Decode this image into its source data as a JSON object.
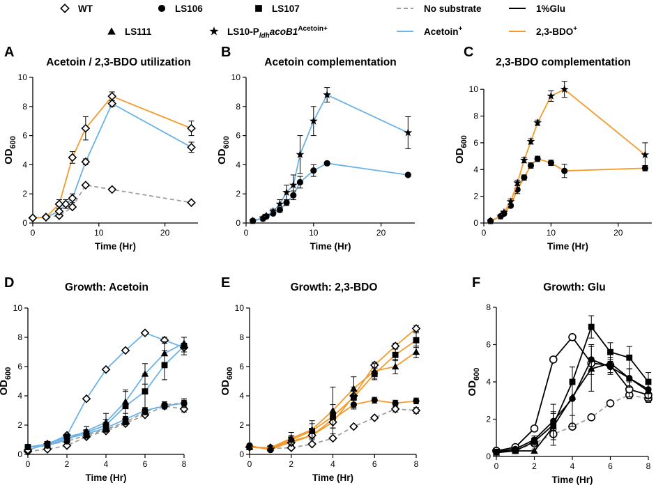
{
  "legend": {
    "items": [
      {
        "key": "wt",
        "label": "WT",
        "kind": "marker",
        "marker": "diamond"
      },
      {
        "key": "ls106",
        "label": "LS106",
        "kind": "marker",
        "marker": "circle"
      },
      {
        "key": "ls107",
        "label": "LS107",
        "kind": "marker",
        "marker": "square"
      },
      {
        "key": "nosub",
        "label": "No substrate",
        "kind": "line",
        "color": "#9e9e9e",
        "dash": true
      },
      {
        "key": "glu",
        "label": "1%Glu",
        "kind": "line",
        "color": "#000000",
        "dash": false
      },
      {
        "key": "ls111",
        "label": "LS111",
        "kind": "marker",
        "marker": "triangle"
      },
      {
        "key": "ls10",
        "label_main": "LS10-P",
        "label_sub": "ldh",
        "label_italic": "acoB1",
        "label_sup": "Acetoin+",
        "kind": "marker",
        "marker": "star"
      },
      {
        "key": "acetoin",
        "label": "Acetoin",
        "label_sup": "+",
        "kind": "line",
        "color": "#6cb2e6",
        "dash": false
      },
      {
        "key": "bdo",
        "label": "2,3-BDO",
        "label_sup": "+",
        "kind": "line",
        "color": "#f39a2b",
        "dash": false
      }
    ]
  },
  "colors": {
    "acetoin": "#6cb2e6",
    "bdo": "#f39a2b",
    "nosub": "#9e9e9e",
    "glu": "#000000"
  },
  "chart_data": [
    {
      "panel": "A",
      "title": "Acetoin / 2,3-BDO utilization",
      "type": "line",
      "xlabel": "Time (Hr)",
      "ylabel": "OD",
      "ylabel_sub": "600",
      "xlim": [
        0,
        25
      ],
      "ylim": [
        0,
        10
      ],
      "xticks": [
        0,
        10,
        20
      ],
      "yticks": [
        0,
        2,
        4,
        6,
        8,
        10
      ],
      "series": [
        {
          "name": "WT no substrate",
          "color": "#9e9e9e",
          "dash": true,
          "marker": "diamond",
          "x": [
            0,
            2,
            4,
            6,
            8,
            12,
            24
          ],
          "y": [
            0.35,
            0.4,
            0.5,
            1.1,
            2.6,
            2.3,
            1.4
          ],
          "err": [
            0.05,
            0.05,
            0.1,
            0.1,
            0.1,
            0.1,
            0.1
          ]
        },
        {
          "name": "WT Acetoin+",
          "color": "#6cb2e6",
          "dash": false,
          "marker": "diamond",
          "x": [
            0,
            2,
            4,
            5,
            6,
            8,
            12,
            24
          ],
          "y": [
            0.35,
            0.4,
            0.8,
            1.3,
            1.7,
            4.2,
            8.2,
            5.2
          ],
          "err": [
            0.05,
            0.05,
            0.2,
            0.3,
            0.3,
            0.2,
            0.2,
            0.35
          ]
        },
        {
          "name": "WT 2,3-BDO+",
          "color": "#f39a2b",
          "dash": false,
          "marker": "diamond",
          "x": [
            0,
            2,
            4,
            6,
            8,
            12,
            24
          ],
          "y": [
            0.35,
            0.4,
            1.3,
            4.5,
            6.5,
            8.7,
            6.5
          ],
          "err": [
            0.05,
            0.05,
            0.3,
            0.4,
            0.8,
            0.3,
            0.5
          ]
        }
      ]
    },
    {
      "panel": "B",
      "title": "Acetoin complementation",
      "type": "line",
      "xlabel": "Time (Hr)",
      "ylabel": "OD",
      "ylabel_sub": "600",
      "xlim": [
        0,
        25
      ],
      "ylim": [
        0,
        10
      ],
      "xticks": [
        0,
        10,
        20
      ],
      "yticks": [
        0,
        2,
        4,
        6,
        8,
        10
      ],
      "series": [
        {
          "name": "LS106 Acetoin+",
          "color": "#6cb2e6",
          "dash": false,
          "marker": "circle",
          "x": [
            1,
            2.5,
            3,
            4,
            5,
            6,
            7,
            8,
            10,
            12,
            24
          ],
          "y": [
            0.15,
            0.3,
            0.45,
            0.65,
            0.9,
            1.4,
            1.9,
            2.8,
            3.6,
            4.1,
            3.3
          ],
          "err": [
            0.05,
            0.05,
            0.1,
            0.1,
            0.15,
            0.2,
            0.3,
            0.4,
            0.4,
            0.1,
            0.1
          ]
        },
        {
          "name": "LS10-Pldh acoB1 Acetoin+",
          "color": "#6cb2e6",
          "dash": false,
          "marker": "star",
          "x": [
            1,
            2.5,
            3,
            4,
            5,
            6,
            7,
            8,
            10,
            12,
            24
          ],
          "y": [
            0.15,
            0.35,
            0.5,
            0.8,
            1.3,
            2.1,
            2.6,
            4.7,
            7.0,
            8.8,
            6.2
          ],
          "err": [
            0.05,
            0.05,
            0.1,
            0.15,
            0.3,
            0.5,
            0.7,
            1.3,
            1.0,
            0.5,
            1.1
          ]
        }
      ]
    },
    {
      "panel": "C",
      "title": "2,3-BDO complementation",
      "type": "line",
      "xlabel": "Time (Hr)",
      "ylabel": "OD",
      "ylabel_sub": "600",
      "xlim": [
        0,
        25
      ],
      "ylim": [
        0,
        11
      ],
      "xticks": [
        0,
        10,
        20
      ],
      "yticks": [
        0,
        2,
        4,
        6,
        8,
        10
      ],
      "series": [
        {
          "name": "LS106 2,3-BDO+",
          "color": "#f39a2b",
          "dash": false,
          "marker": "circle",
          "x": [
            1,
            2.5,
            3,
            4,
            5,
            6,
            7,
            8,
            10,
            12,
            24
          ],
          "y": [
            0.15,
            0.5,
            0.7,
            1.3,
            2.5,
            3.4,
            4.3,
            4.8,
            4.5,
            3.9,
            4.1
          ],
          "err": [
            0.05,
            0.1,
            0.1,
            0.1,
            0.3,
            0.2,
            0.2,
            0.2,
            0.2,
            0.5,
            0.2
          ]
        },
        {
          "name": "LS10-Pldh acoB1 2,3-BDO+",
          "color": "#f39a2b",
          "dash": false,
          "marker": "star",
          "x": [
            1,
            2.5,
            3,
            4,
            5,
            6,
            7,
            8,
            10,
            12,
            24
          ],
          "y": [
            0.15,
            0.5,
            0.8,
            1.6,
            3.0,
            4.7,
            6.1,
            7.5,
            9.5,
            10.0,
            5.1
          ],
          "err": [
            0.05,
            0.1,
            0.1,
            0.2,
            0.2,
            0.2,
            0.2,
            0.2,
            0.4,
            0.6,
            0.9
          ]
        }
      ]
    },
    {
      "panel": "D",
      "title": "Growth: Acetoin",
      "type": "line",
      "xlabel": "Time (Hr)",
      "ylabel": "OD",
      "ylabel_sub": "600",
      "xlim": [
        0,
        8
      ],
      "ylim": [
        0,
        10
      ],
      "xticks": [
        0,
        2,
        4,
        6,
        8
      ],
      "yticks": [
        0,
        2,
        4,
        6,
        8,
        10
      ],
      "series": [
        {
          "name": "WT no substrate",
          "color": "#9e9e9e",
          "dash": true,
          "marker": "diamond",
          "x": [
            0,
            1,
            2,
            3,
            4,
            5,
            6,
            7,
            8
          ],
          "y": [
            0.2,
            0.35,
            0.6,
            1.2,
            1.6,
            2.1,
            2.7,
            3.3,
            3.1
          ],
          "err": [
            0.05,
            0.1,
            0.1,
            0.1,
            0.1,
            0.1,
            0.1,
            0.1,
            0.2
          ]
        },
        {
          "name": "LS106 no substrate",
          "color": "#9e9e9e",
          "dash": true,
          "marker": "circle",
          "x": [
            0,
            1,
            2,
            3,
            4,
            5,
            6,
            7,
            8
          ],
          "y": [
            0.5,
            0.65,
            0.9,
            1.3,
            1.7,
            2.2,
            2.9,
            3.4,
            3.5
          ],
          "err": [
            0.1,
            0.1,
            0.1,
            0.1,
            0.1,
            0.1,
            0.2,
            0.2,
            0.3
          ]
        },
        {
          "name": "WT Acetoin+",
          "color": "#6cb2e6",
          "dash": false,
          "marker": "diamond",
          "x": [
            0,
            1,
            2,
            3,
            4,
            5,
            6,
            7,
            8
          ],
          "y": [
            0.3,
            0.7,
            1.3,
            3.8,
            5.8,
            7.1,
            8.3,
            7.8,
            7.3
          ],
          "err": [
            0.05,
            0.1,
            0.1,
            0.1,
            0.1,
            0.1,
            0.1,
            0.2,
            0.3
          ]
        },
        {
          "name": "LS107 Acetoin+",
          "color": "#6cb2e6",
          "dash": false,
          "marker": "square",
          "x": [
            0,
            1,
            2,
            3,
            4,
            5,
            6,
            7,
            8
          ],
          "y": [
            0.5,
            0.7,
            1.2,
            1.5,
            2.0,
            3.3,
            4.3,
            6.1,
            7.4
          ],
          "err": [
            0.1,
            0.1,
            0.2,
            0.4,
            0.4,
            1.0,
            1.2,
            1.0,
            0.6
          ]
        },
        {
          "name": "LS111 Acetoin+",
          "color": "#6cb2e6",
          "dash": false,
          "marker": "triangle",
          "x": [
            0,
            1,
            2,
            3,
            4,
            5,
            6,
            7,
            8
          ],
          "y": [
            0.5,
            0.6,
            1.0,
            1.6,
            2.2,
            3.6,
            5.5,
            6.9,
            7.6
          ],
          "err": [
            0.1,
            0.1,
            0.2,
            0.3,
            0.6,
            0.8,
            0.7,
            0.8,
            0.4
          ]
        },
        {
          "name": "LS106 Acetoin+",
          "color": "#6cb2e6",
          "dash": false,
          "marker": "circle",
          "x": [
            0,
            1,
            2,
            3,
            4,
            5,
            6,
            7,
            8
          ],
          "y": [
            0.5,
            0.6,
            1.1,
            1.4,
            1.8,
            2.4,
            3.0,
            3.3,
            3.5
          ],
          "err": [
            0.1,
            0.1,
            0.1,
            0.1,
            0.2,
            0.2,
            0.2,
            0.2,
            0.2
          ]
        }
      ]
    },
    {
      "panel": "E",
      "title": "Growth: 2,3-BDO",
      "type": "line",
      "xlabel": "Time (Hr)",
      "ylabel": "OD",
      "ylabel_sub": "600",
      "xlim": [
        0,
        8
      ],
      "ylim": [
        0,
        10
      ],
      "xticks": [
        0,
        2,
        4,
        6,
        8
      ],
      "yticks": [
        0,
        2,
        4,
        6,
        8,
        10
      ],
      "series": [
        {
          "name": "WT no substrate",
          "color": "#9e9e9e",
          "dash": true,
          "marker": "diamond",
          "x": [
            0,
            1,
            2,
            3,
            4,
            5,
            6,
            7,
            8
          ],
          "y": [
            0.5,
            0.4,
            0.45,
            0.7,
            1.1,
            1.9,
            2.5,
            3.1,
            3.0
          ],
          "err": [
            0.05,
            0.05,
            0.1,
            0.1,
            0.1,
            0.1,
            0.1,
            0.2,
            0.2
          ]
        },
        {
          "name": "LS106 2,3-BDO+",
          "color": "#f39a2b",
          "dash": false,
          "marker": "circle",
          "x": [
            0,
            1,
            2,
            3,
            4,
            5,
            6,
            7,
            8
          ],
          "y": [
            0.6,
            0.3,
            0.9,
            1.3,
            2.4,
            3.4,
            3.7,
            3.5,
            3.65
          ],
          "err": [
            0.1,
            0.1,
            0.3,
            0.3,
            0.3,
            0.3,
            0.2,
            0.2,
            0.2
          ]
        },
        {
          "name": "WT 2,3-BDO+",
          "color": "#f39a2b",
          "dash": false,
          "marker": "diamond",
          "x": [
            0,
            1,
            2,
            3,
            4,
            5,
            6,
            7,
            8
          ],
          "y": [
            0.5,
            0.45,
            0.8,
            1.3,
            2.2,
            4.0,
            6.1,
            7.4,
            8.6
          ],
          "err": [
            0.1,
            0.1,
            0.2,
            0.3,
            0.4,
            0.3,
            0.2,
            0.2,
            0.2
          ]
        },
        {
          "name": "LS107 2,3-BDO+",
          "color": "#f39a2b",
          "dash": false,
          "marker": "square",
          "x": [
            0,
            1,
            2,
            3,
            4,
            5,
            6,
            7,
            8
          ],
          "y": [
            0.5,
            0.4,
            1.0,
            1.6,
            2.6,
            3.9,
            5.5,
            6.8,
            7.8
          ],
          "err": [
            0.1,
            0.1,
            0.3,
            0.5,
            0.8,
            0.7,
            0.4,
            0.4,
            0.5
          ]
        },
        {
          "name": "LS111 2,3-BDO+",
          "color": "#f39a2b",
          "dash": false,
          "marker": "triangle",
          "x": [
            0,
            1,
            2,
            3,
            4,
            5,
            6,
            7,
            8
          ],
          "y": [
            0.5,
            0.45,
            1.1,
            1.7,
            3.0,
            4.5,
            5.7,
            6.0,
            7.0
          ],
          "err": [
            0.1,
            0.1,
            0.4,
            0.6,
            1.6,
            0.8,
            0.5,
            0.5,
            0.4
          ]
        }
      ]
    },
    {
      "panel": "F",
      "title": "Growth: Glu",
      "type": "line",
      "xlabel": "Time (Hr)",
      "ylabel": "OD",
      "ylabel_sub": "600",
      "xlim": [
        0,
        8
      ],
      "ylim": [
        0,
        8
      ],
      "xticks": [
        0,
        2,
        4,
        6,
        8
      ],
      "yticks": [
        0,
        2,
        4,
        6,
        8
      ],
      "series": [
        {
          "name": "No substrate (open circle)",
          "color": "#9e9e9e",
          "dash": true,
          "marker": "open-circle",
          "x": [
            0,
            1,
            2,
            3,
            4,
            5,
            6,
            7,
            8
          ],
          "y": [
            0.3,
            0.35,
            0.7,
            1.2,
            1.6,
            2.1,
            2.85,
            3.3,
            3.1
          ],
          "err": [
            0.05,
            0.05,
            0.1,
            0.1,
            0.1,
            0.1,
            0.1,
            0.2,
            0.2
          ]
        },
        {
          "name": "1%Glu (open circle)",
          "color": "#000000",
          "dash": false,
          "marker": "open-circle",
          "x": [
            0,
            1,
            2,
            3,
            4,
            5,
            6,
            7,
            8
          ],
          "y": [
            0.3,
            0.5,
            1.5,
            5.2,
            6.4,
            5.0,
            4.9,
            3.6,
            3.3
          ],
          "err": [
            0.05,
            0.1,
            0.1,
            0.1,
            0.1,
            0.3,
            0.4,
            0.4,
            0.3
          ]
        },
        {
          "name": "LS106 1%Glu",
          "color": "#000000",
          "dash": false,
          "marker": "circle",
          "x": [
            0,
            1,
            2,
            3,
            4,
            5,
            6,
            7,
            8
          ],
          "y": [
            0.25,
            0.4,
            0.9,
            1.9,
            3.1,
            5.2,
            4.8,
            4.2,
            3.6
          ],
          "err": [
            0.05,
            0.1,
            0.2,
            0.5,
            0.9,
            0.8,
            0.4,
            0.5,
            0.5
          ]
        },
        {
          "name": "LS107 1%Glu",
          "color": "#000000",
          "dash": false,
          "marker": "square",
          "x": [
            0,
            1,
            2,
            3,
            4,
            5,
            6,
            7,
            8
          ],
          "y": [
            0.25,
            0.3,
            0.8,
            1.7,
            4.0,
            6.95,
            5.6,
            5.3,
            4.0
          ],
          "err": [
            0.05,
            0.1,
            0.2,
            1.1,
            0.8,
            0.6,
            0.5,
            0.6,
            0.5
          ]
        },
        {
          "name": "LS111 1%Glu",
          "color": "#000000",
          "dash": false,
          "marker": "triangle",
          "x": [
            0,
            1,
            2,
            3,
            4,
            5,
            6,
            7,
            8
          ],
          "y": [
            0.2,
            0.3,
            0.3,
            1.6,
            3.2,
            4.7,
            5.0,
            4.2,
            3.5
          ],
          "err": [
            0.05,
            0.1,
            0.1,
            0.7,
            1.6,
            1.2,
            0.3,
            0.5,
            0.4
          ]
        }
      ]
    }
  ]
}
